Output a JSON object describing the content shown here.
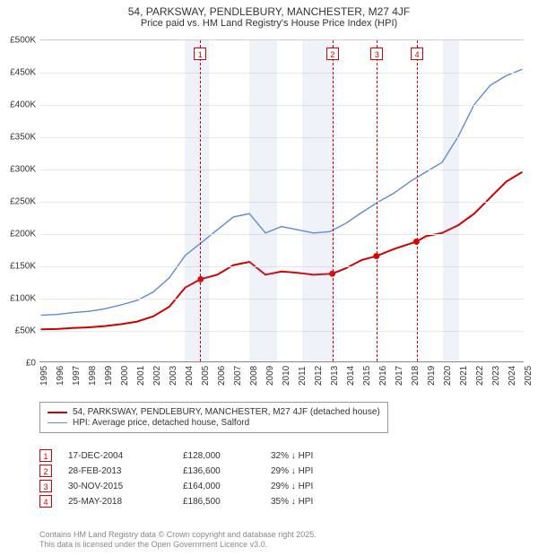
{
  "title": "54, PARKSWAY, PENDLEBURY, MANCHESTER, M27 4JF",
  "subtitle": "Price paid vs. HM Land Registry's House Price Index (HPI)",
  "chart": {
    "type": "line",
    "x_years": [
      1995,
      1996,
      1997,
      1998,
      1999,
      2000,
      2001,
      2002,
      2003,
      2004,
      2005,
      2006,
      2007,
      2008,
      2009,
      2010,
      2011,
      2012,
      2013,
      2014,
      2015,
      2016,
      2017,
      2018,
      2019,
      2020,
      2021,
      2022,
      2023,
      2024,
      2025
    ],
    "ylim": [
      0,
      500000
    ],
    "ytick_step": 50000,
    "ytick_labels": [
      "£0",
      "£50K",
      "£100K",
      "£150K",
      "£200K",
      "£250K",
      "£300K",
      "£350K",
      "£400K",
      "£450K",
      "£500K"
    ],
    "background_color": "#ffffff",
    "grid_color": "#e8e8e8",
    "shaded_color": "rgba(120,150,200,0.12)",
    "shaded_ranges": [
      [
        2004.0,
        2005.5
      ],
      [
        2008.0,
        2009.7
      ],
      [
        2011.3,
        2013.3
      ],
      [
        2020.0,
        2021.0
      ]
    ],
    "series": [
      {
        "name": "property",
        "color": "#d00000",
        "width": 2,
        "legend": "54, PARKSWAY, PENDLEBURY, MANCHESTER, M27 4JF (detached house)",
        "points": [
          [
            1995,
            50000
          ],
          [
            1996,
            50500
          ],
          [
            1997,
            52000
          ],
          [
            1998,
            53000
          ],
          [
            1999,
            55000
          ],
          [
            2000,
            58000
          ],
          [
            2001,
            62000
          ],
          [
            2002,
            70000
          ],
          [
            2003,
            85000
          ],
          [
            2004,
            115000
          ],
          [
            2004.96,
            128000
          ],
          [
            2006,
            135000
          ],
          [
            2007,
            150000
          ],
          [
            2008,
            155000
          ],
          [
            2009,
            135000
          ],
          [
            2010,
            140000
          ],
          [
            2011,
            138000
          ],
          [
            2012,
            135000
          ],
          [
            2013.16,
            136600
          ],
          [
            2014,
            145000
          ],
          [
            2015,
            158000
          ],
          [
            2015.91,
            164000
          ],
          [
            2017,
            175000
          ],
          [
            2018.4,
            186500
          ],
          [
            2019,
            195000
          ],
          [
            2020,
            200000
          ],
          [
            2021,
            212000
          ],
          [
            2022,
            230000
          ],
          [
            2023,
            255000
          ],
          [
            2024,
            280000
          ],
          [
            2025,
            295000
          ]
        ]
      },
      {
        "name": "hpi",
        "color": "#5b8bd4",
        "width": 1.4,
        "legend": "HPI: Average price, detached house, Salford",
        "points": [
          [
            1995,
            72000
          ],
          [
            1996,
            73000
          ],
          [
            1997,
            76000
          ],
          [
            1998,
            78000
          ],
          [
            1999,
            82000
          ],
          [
            2000,
            88000
          ],
          [
            2001,
            95000
          ],
          [
            2002,
            108000
          ],
          [
            2003,
            130000
          ],
          [
            2004,
            165000
          ],
          [
            2005,
            185000
          ],
          [
            2006,
            205000
          ],
          [
            2007,
            225000
          ],
          [
            2008,
            230000
          ],
          [
            2009,
            200000
          ],
          [
            2010,
            210000
          ],
          [
            2011,
            205000
          ],
          [
            2012,
            200000
          ],
          [
            2013,
            202000
          ],
          [
            2014,
            215000
          ],
          [
            2015,
            232000
          ],
          [
            2016,
            248000
          ],
          [
            2017,
            262000
          ],
          [
            2018,
            280000
          ],
          [
            2019,
            295000
          ],
          [
            2020,
            310000
          ],
          [
            2021,
            350000
          ],
          [
            2022,
            400000
          ],
          [
            2023,
            430000
          ],
          [
            2024,
            445000
          ],
          [
            2025,
            455000
          ]
        ]
      }
    ],
    "markers": [
      {
        "n": "1",
        "year": 2004.96,
        "price": 128000
      },
      {
        "n": "2",
        "year": 2013.16,
        "price": 136600
      },
      {
        "n": "3",
        "year": 2015.91,
        "price": 164000
      },
      {
        "n": "4",
        "year": 2018.4,
        "price": 186500
      }
    ]
  },
  "transactions": [
    {
      "n": "1",
      "date": "17-DEC-2004",
      "price": "£128,000",
      "pct": "32% ↓ HPI"
    },
    {
      "n": "2",
      "date": "28-FEB-2013",
      "price": "£136,600",
      "pct": "29% ↓ HPI"
    },
    {
      "n": "3",
      "date": "30-NOV-2015",
      "price": "£164,000",
      "pct": "29% ↓ HPI"
    },
    {
      "n": "4",
      "date": "25-MAY-2018",
      "price": "£186,500",
      "pct": "35% ↓ HPI"
    }
  ],
  "footer1": "Contains HM Land Registry data © Crown copyright and database right 2025.",
  "footer2": "This data is licensed under the Open Government Licence v3.0."
}
